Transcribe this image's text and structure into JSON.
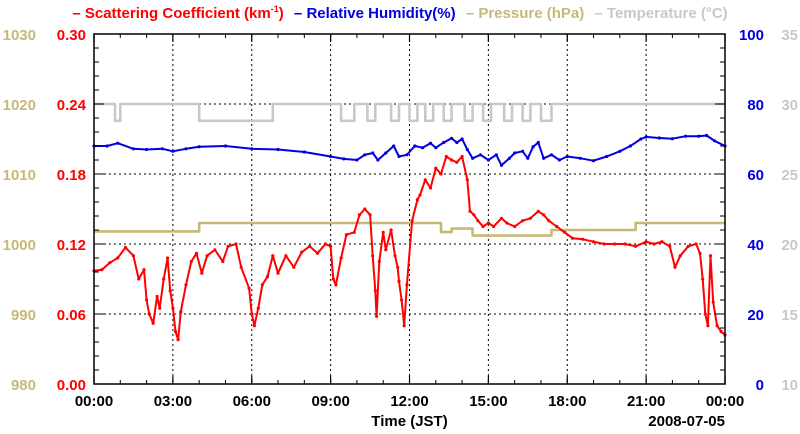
{
  "chart_data": {
    "type": "line",
    "x_axis": {
      "title": "Time (JST)",
      "tick_labels": [
        "00:00",
        "03:00",
        "06:00",
        "09:00",
        "12:00",
        "15:00",
        "18:00",
        "21:00",
        "00:00"
      ],
      "range_hours": [
        0,
        24
      ],
      "date_label": "2008-07-05"
    },
    "axes": {
      "pressure": {
        "label_color": "#c8b878",
        "ticks": [
          "1030",
          "1020",
          "1010",
          "1000",
          "990",
          "980"
        ],
        "range": [
          980,
          1030
        ]
      },
      "scattering": {
        "label_color": "#ff0000",
        "ticks": [
          "0.30",
          "0.24",
          "0.18",
          "0.12",
          "0.06",
          "0.00"
        ],
        "range": [
          0,
          0.3
        ]
      },
      "humidity": {
        "label_color": "#0000e0",
        "ticks": [
          "100",
          "80",
          "60",
          "40",
          "20",
          "0"
        ],
        "range": [
          0,
          100
        ]
      },
      "temperature": {
        "label_color": "#c8c8c8",
        "ticks": [
          "35",
          "30",
          "25",
          "20",
          "15",
          "10"
        ],
        "range": [
          10,
          35
        ]
      }
    },
    "legend": [
      {
        "marker": "–",
        "text": "Scattering Coefficient (km",
        "sup": "-1",
        "tail": ")",
        "color": "#ff0000"
      },
      {
        "marker": "–",
        "text": "Relative Humidity(%)",
        "color": "#0000e0"
      },
      {
        "marker": "–",
        "text": "Pressure (hPa)",
        "color": "#c8b878"
      },
      {
        "marker": "–",
        "text": "Temperature (°C)",
        "color": "#c8c8c8"
      }
    ],
    "grid": true,
    "series": [
      {
        "name": "Scattering Coefficient (km-1)",
        "axis": "scattering",
        "color": "#ff0000",
        "points": [
          [
            0,
            0.097
          ],
          [
            0.3,
            0.098
          ],
          [
            0.6,
            0.104
          ],
          [
            0.9,
            0.108
          ],
          [
            1.2,
            0.117
          ],
          [
            1.5,
            0.11
          ],
          [
            1.7,
            0.09
          ],
          [
            1.9,
            0.098
          ],
          [
            2.0,
            0.072
          ],
          [
            2.1,
            0.06
          ],
          [
            2.25,
            0.052
          ],
          [
            2.4,
            0.075
          ],
          [
            2.5,
            0.065
          ],
          [
            2.65,
            0.09
          ],
          [
            2.8,
            0.108
          ],
          [
            2.9,
            0.08
          ],
          [
            3.0,
            0.065
          ],
          [
            3.1,
            0.045
          ],
          [
            3.2,
            0.038
          ],
          [
            3.3,
            0.062
          ],
          [
            3.5,
            0.085
          ],
          [
            3.7,
            0.105
          ],
          [
            3.9,
            0.112
          ],
          [
            4.1,
            0.095
          ],
          [
            4.3,
            0.11
          ],
          [
            4.6,
            0.115
          ],
          [
            4.9,
            0.105
          ],
          [
            5.1,
            0.118
          ],
          [
            5.4,
            0.12
          ],
          [
            5.6,
            0.1
          ],
          [
            5.9,
            0.082
          ],
          [
            6.0,
            0.06
          ],
          [
            6.1,
            0.05
          ],
          [
            6.25,
            0.065
          ],
          [
            6.4,
            0.085
          ],
          [
            6.6,
            0.092
          ],
          [
            6.8,
            0.11
          ],
          [
            7.0,
            0.095
          ],
          [
            7.3,
            0.11
          ],
          [
            7.6,
            0.1
          ],
          [
            7.9,
            0.113
          ],
          [
            8.2,
            0.118
          ],
          [
            8.5,
            0.112
          ],
          [
            8.8,
            0.12
          ],
          [
            9.0,
            0.118
          ],
          [
            9.1,
            0.09
          ],
          [
            9.2,
            0.085
          ],
          [
            9.4,
            0.108
          ],
          [
            9.6,
            0.128
          ],
          [
            9.9,
            0.13
          ],
          [
            10.1,
            0.145
          ],
          [
            10.3,
            0.15
          ],
          [
            10.5,
            0.145
          ],
          [
            10.6,
            0.11
          ],
          [
            10.7,
            0.08
          ],
          [
            10.75,
            0.058
          ],
          [
            10.85,
            0.105
          ],
          [
            11.0,
            0.13
          ],
          [
            11.1,
            0.115
          ],
          [
            11.3,
            0.132
          ],
          [
            11.45,
            0.11
          ],
          [
            11.55,
            0.1
          ],
          [
            11.6,
            0.088
          ],
          [
            11.7,
            0.072
          ],
          [
            11.8,
            0.05
          ],
          [
            11.9,
            0.085
          ],
          [
            12.1,
            0.14
          ],
          [
            12.3,
            0.158
          ],
          [
            12.4,
            0.162
          ],
          [
            12.6,
            0.175
          ],
          [
            12.8,
            0.168
          ],
          [
            13.0,
            0.185
          ],
          [
            13.2,
            0.18
          ],
          [
            13.4,
            0.195
          ],
          [
            13.6,
            0.192
          ],
          [
            13.8,
            0.19
          ],
          [
            14.0,
            0.195
          ],
          [
            14.2,
            0.175
          ],
          [
            14.3,
            0.148
          ],
          [
            14.45,
            0.145
          ],
          [
            14.6,
            0.14
          ],
          [
            14.8,
            0.135
          ],
          [
            15.0,
            0.138
          ],
          [
            15.2,
            0.135
          ],
          [
            15.5,
            0.142
          ],
          [
            15.7,
            0.138
          ],
          [
            16.0,
            0.135
          ],
          [
            16.3,
            0.14
          ],
          [
            16.6,
            0.142
          ],
          [
            16.9,
            0.148
          ],
          [
            17.1,
            0.145
          ],
          [
            17.3,
            0.14
          ],
          [
            17.6,
            0.135
          ],
          [
            17.9,
            0.13
          ],
          [
            18.2,
            0.125
          ],
          [
            18.6,
            0.124
          ],
          [
            19.0,
            0.122
          ],
          [
            19.4,
            0.12
          ],
          [
            19.8,
            0.12
          ],
          [
            20.2,
            0.12
          ],
          [
            20.6,
            0.118
          ],
          [
            21.0,
            0.122
          ],
          [
            21.3,
            0.12
          ],
          [
            21.6,
            0.122
          ],
          [
            21.9,
            0.118
          ],
          [
            22.1,
            0.1
          ],
          [
            22.3,
            0.11
          ],
          [
            22.6,
            0.118
          ],
          [
            22.9,
            0.12
          ],
          [
            23.05,
            0.112
          ],
          [
            23.15,
            0.09
          ],
          [
            23.25,
            0.06
          ],
          [
            23.35,
            0.05
          ],
          [
            23.45,
            0.11
          ],
          [
            23.55,
            0.07
          ],
          [
            23.7,
            0.05
          ],
          [
            23.85,
            0.045
          ],
          [
            24.0,
            0.042
          ]
        ]
      },
      {
        "name": "Relative Humidity(%)",
        "axis": "humidity",
        "color": "#0000e0",
        "points": [
          [
            0,
            68
          ],
          [
            0.5,
            68
          ],
          [
            0.9,
            68.8
          ],
          [
            1.5,
            67.2
          ],
          [
            2.0,
            67.0
          ],
          [
            2.6,
            67.2
          ],
          [
            3.0,
            66.5
          ],
          [
            3.5,
            67.2
          ],
          [
            4.0,
            67.8
          ],
          [
            5.0,
            68.0
          ],
          [
            6.0,
            67.2
          ],
          [
            7.0,
            67.0
          ],
          [
            8.0,
            66.3
          ],
          [
            9.0,
            65.0
          ],
          [
            9.5,
            64.3
          ],
          [
            10.0,
            64.0
          ],
          [
            10.3,
            65.5
          ],
          [
            10.6,
            66.0
          ],
          [
            10.8,
            64.0
          ],
          [
            11.1,
            66.0
          ],
          [
            11.4,
            68.0
          ],
          [
            11.6,
            65.0
          ],
          [
            11.9,
            65.5
          ],
          [
            12.2,
            68.0
          ],
          [
            12.5,
            67.5
          ],
          [
            12.8,
            68.8
          ],
          [
            13.0,
            67.5
          ],
          [
            13.3,
            69.0
          ],
          [
            13.6,
            70.2
          ],
          [
            13.8,
            69.0
          ],
          [
            14.0,
            70.0
          ],
          [
            14.2,
            67.0
          ],
          [
            14.4,
            64.5
          ],
          [
            14.7,
            65.5
          ],
          [
            15.0,
            64.0
          ],
          [
            15.3,
            65.5
          ],
          [
            15.5,
            62.5
          ],
          [
            15.8,
            64.5
          ],
          [
            16.0,
            66.0
          ],
          [
            16.3,
            66.5
          ],
          [
            16.5,
            64.5
          ],
          [
            16.7,
            67.8
          ],
          [
            16.9,
            69.0
          ],
          [
            17.1,
            64.5
          ],
          [
            17.4,
            65.5
          ],
          [
            17.7,
            64.0
          ],
          [
            18.0,
            65.0
          ],
          [
            18.5,
            64.5
          ],
          [
            19.0,
            63.8
          ],
          [
            19.5,
            65.0
          ],
          [
            20.0,
            66.5
          ],
          [
            20.4,
            68.0
          ],
          [
            20.8,
            70.0
          ],
          [
            21.0,
            70.6
          ],
          [
            21.5,
            70.3
          ],
          [
            22.0,
            70.1
          ],
          [
            22.5,
            70.8
          ],
          [
            23.0,
            70.8
          ],
          [
            23.3,
            71.0
          ],
          [
            23.6,
            69.5
          ],
          [
            24.0,
            68.0
          ]
        ]
      },
      {
        "name": "Pressure (hPa)",
        "axis": "pressure",
        "color": "#c8b878",
        "points": [
          [
            0,
            1001.8
          ],
          [
            4.0,
            1001.8
          ],
          [
            4.0,
            1003.0
          ],
          [
            13.2,
            1003.0
          ],
          [
            13.2,
            1001.7
          ],
          [
            13.6,
            1001.7
          ],
          [
            13.6,
            1002.2
          ],
          [
            14.4,
            1002.2
          ],
          [
            14.4,
            1001.2
          ],
          [
            17.4,
            1001.2
          ],
          [
            17.4,
            1002.0
          ],
          [
            20.6,
            1002.0
          ],
          [
            20.6,
            1003.0
          ],
          [
            24.0,
            1003.0
          ]
        ]
      },
      {
        "name": "Temperature (°C)",
        "axis": "temperature",
        "color": "#c8c8c8",
        "points": [
          [
            0,
            30
          ],
          [
            0.8,
            30
          ],
          [
            0.8,
            28.8
          ],
          [
            1.0,
            28.8
          ],
          [
            1.0,
            30
          ],
          [
            4.0,
            30
          ],
          [
            4.0,
            28.8
          ],
          [
            6.8,
            28.8
          ],
          [
            6.8,
            30
          ],
          [
            9.4,
            30
          ],
          [
            9.4,
            28.8
          ],
          [
            9.9,
            28.8
          ],
          [
            9.9,
            30
          ],
          [
            10.4,
            30
          ],
          [
            10.4,
            28.8
          ],
          [
            10.7,
            28.8
          ],
          [
            10.7,
            30
          ],
          [
            11.3,
            30
          ],
          [
            11.3,
            28.8
          ],
          [
            11.6,
            28.8
          ],
          [
            11.6,
            30
          ],
          [
            12.0,
            30
          ],
          [
            12.0,
            28.8
          ],
          [
            12.3,
            28.8
          ],
          [
            12.3,
            30
          ],
          [
            12.6,
            30
          ],
          [
            12.6,
            28.8
          ],
          [
            12.9,
            28.8
          ],
          [
            12.9,
            30
          ],
          [
            13.3,
            30
          ],
          [
            13.3,
            28.8
          ],
          [
            13.6,
            28.8
          ],
          [
            13.6,
            30
          ],
          [
            14.1,
            30
          ],
          [
            14.1,
            28.8
          ],
          [
            14.4,
            28.8
          ],
          [
            14.4,
            30
          ],
          [
            14.8,
            30
          ],
          [
            14.8,
            28.8
          ],
          [
            15.1,
            28.8
          ],
          [
            15.1,
            30
          ],
          [
            15.6,
            30
          ],
          [
            15.6,
            28.8
          ],
          [
            15.9,
            28.8
          ],
          [
            15.9,
            30
          ],
          [
            16.3,
            30
          ],
          [
            16.3,
            28.8
          ],
          [
            16.6,
            28.8
          ],
          [
            16.6,
            30
          ],
          [
            17.0,
            30
          ],
          [
            17.0,
            28.8
          ],
          [
            17.4,
            28.8
          ],
          [
            17.4,
            30
          ],
          [
            24.0,
            30
          ]
        ]
      }
    ]
  }
}
